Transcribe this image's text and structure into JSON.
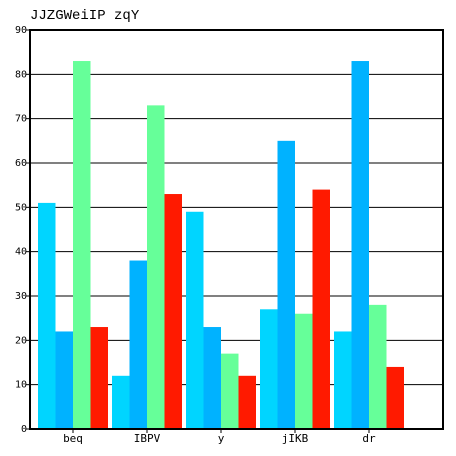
{
  "chart_data": {
    "type": "bar",
    "title": "JJZGWeiIP zqY",
    "xlabel": "",
    "ylabel": "",
    "ylim": [
      0,
      90
    ],
    "yticks": [
      0,
      10,
      20,
      30,
      40,
      50,
      60,
      70,
      80,
      90
    ],
    "grid": true,
    "categories": [
      "beq",
      "IBPV",
      "y",
      "jIKB",
      "dr"
    ],
    "series": [
      {
        "values": [
          51,
          12,
          49,
          27,
          22
        ],
        "color": "#00d5ff"
      },
      {
        "values": [
          22,
          38,
          23,
          65,
          83
        ],
        "color": "#00b2ff"
      },
      {
        "values": [
          83,
          73,
          17,
          26,
          28
        ],
        "color": "#66ff99"
      },
      {
        "values": [
          23,
          53,
          12,
          54,
          14
        ],
        "color": "#ff1a00"
      }
    ]
  }
}
